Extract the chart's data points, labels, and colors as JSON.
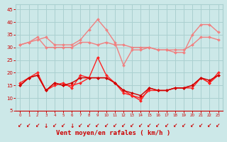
{
  "x": [
    0,
    1,
    2,
    3,
    4,
    5,
    6,
    7,
    8,
    9,
    10,
    11,
    12,
    13,
    14,
    15,
    16,
    17,
    18,
    19,
    20,
    21,
    22,
    23
  ],
  "series": [
    {
      "color": "#f08080",
      "values": [
        31,
        32,
        33,
        34,
        31,
        31,
        31,
        33,
        37,
        41,
        37,
        32,
        23,
        29,
        29,
        30,
        29,
        29,
        28,
        28,
        35,
        39,
        39,
        36
      ],
      "lw": 1.0
    },
    {
      "color": "#f08080",
      "values": [
        31,
        32,
        34,
        30,
        30,
        30,
        30,
        32,
        32,
        31,
        32,
        31,
        31,
        30,
        30,
        30,
        29,
        29,
        29,
        29,
        31,
        34,
        34,
        33
      ],
      "lw": 1.0
    },
    {
      "color": "#ff2222",
      "values": [
        15,
        18,
        20,
        13,
        16,
        15,
        15,
        16,
        18,
        26,
        19,
        16,
        13,
        11,
        9,
        14,
        13,
        13,
        14,
        14,
        14,
        18,
        16,
        19
      ],
      "lw": 1.0
    },
    {
      "color": "#ff2222",
      "values": [
        16,
        18,
        19,
        13,
        15,
        16,
        14,
        19,
        18,
        18,
        18,
        16,
        12,
        11,
        10,
        13,
        13,
        13,
        14,
        14,
        15,
        18,
        16,
        20
      ],
      "lw": 1.0
    },
    {
      "color": "#cc0000",
      "values": [
        15,
        18,
        19,
        13,
        16,
        15,
        16,
        18,
        18,
        18,
        18,
        16,
        13,
        12,
        11,
        14,
        13,
        13,
        14,
        14,
        15,
        18,
        17,
        19
      ],
      "lw": 1.0
    }
  ],
  "xlabel": "Vent moyen/en rafales ( km/h )",
  "ylim": [
    5,
    47
  ],
  "xlim": [
    -0.5,
    23.5
  ],
  "yticks": [
    5,
    10,
    15,
    20,
    25,
    30,
    35,
    40,
    45
  ],
  "xticks": [
    0,
    1,
    2,
    3,
    4,
    5,
    6,
    7,
    8,
    9,
    10,
    11,
    12,
    13,
    14,
    15,
    16,
    17,
    18,
    19,
    20,
    21,
    22,
    23
  ],
  "bg_color": "#cce8e8",
  "grid_color": "#aad0d0",
  "tick_color": "#cc0000",
  "label_color": "#cc0000",
  "arrow_color": "#cc0000",
  "marker": "D",
  "markersize": 2.0
}
